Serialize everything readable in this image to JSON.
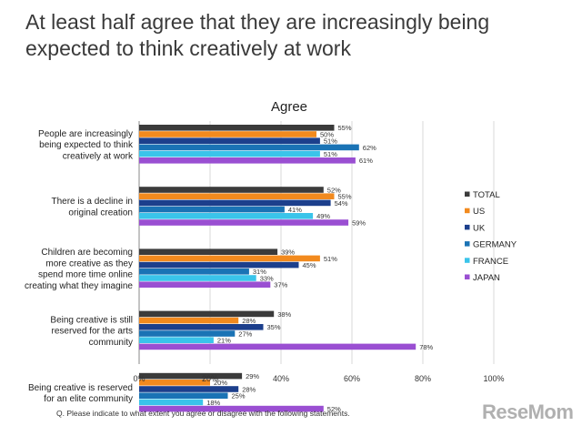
{
  "headline": {
    "line1": "At least half agree that they are increasingly being",
    "line2": "expected to think creatively at work"
  },
  "footnote": "Q. Please indicate to what extent you agree or disagree with the following statements.",
  "watermark": "ReseMom",
  "chart_data": {
    "type": "bar",
    "orientation": "horizontal",
    "title": "Agree",
    "categories": [
      [
        "People are increasingly",
        "being expected to think",
        "creatively at work"
      ],
      [
        "There is a decline in",
        "original creation"
      ],
      [
        "Children are becoming",
        "more creative as they",
        "spend more time online",
        "creating what they imagine"
      ],
      [
        "Being creative is still",
        "reserved for the arts",
        "community"
      ],
      [
        "Being creative is reserved",
        "for an elite community"
      ]
    ],
    "series": [
      {
        "name": "TOTAL",
        "color": "#3b3b3b",
        "values": [
          55,
          52,
          39,
          38,
          29
        ]
      },
      {
        "name": "US",
        "color": "#f28a1e",
        "values": [
          50,
          55,
          51,
          28,
          20
        ]
      },
      {
        "name": "UK",
        "color": "#1c3f8c",
        "values": [
          51,
          54,
          45,
          35,
          28
        ]
      },
      {
        "name": "GERMANY",
        "color": "#1a73b5",
        "values": [
          62,
          41,
          31,
          27,
          25
        ]
      },
      {
        "name": "FRANCE",
        "color": "#3ac4ea",
        "values": [
          51,
          49,
          33,
          21,
          18
        ]
      },
      {
        "name": "JAPAN",
        "color": "#9a4fd2",
        "values": [
          61,
          59,
          37,
          78,
          52
        ]
      }
    ],
    "value_suffix": "%",
    "xlim": [
      0,
      100
    ],
    "xticks": [
      "0%",
      "20%",
      "40%",
      "60%",
      "80%",
      "100%"
    ],
    "grid": true,
    "legend_position": "right"
  }
}
